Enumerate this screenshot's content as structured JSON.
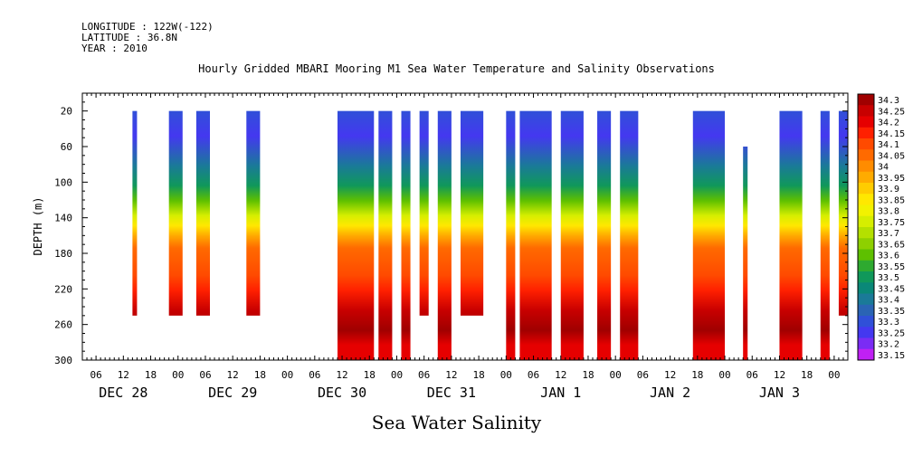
{
  "header": {
    "longitude": "LONGITUDE : 122W(-122)",
    "latitude": "LATITUDE : 36.8N",
    "year": "YEAR : 2010"
  },
  "chart_data": {
    "type": "heatmap",
    "title": "Hourly Gridded MBARI Mooring M1 Sea Water Temperature and Salinity Observations",
    "xlabel": "",
    "ylabel": "DEPTH (m)",
    "footer": "Sea Water Salinity",
    "y_ticks": [
      20,
      60,
      100,
      140,
      180,
      220,
      260,
      300
    ],
    "ylim": [
      0,
      300
    ],
    "x_hour_ticks": [
      "06",
      "12",
      "18",
      "00",
      "06",
      "12",
      "18",
      "00",
      "06",
      "12",
      "18",
      "00",
      "06",
      "12",
      "18",
      "00",
      "06",
      "12",
      "18",
      "00",
      "06",
      "12",
      "18",
      "00",
      "06",
      "12",
      "18",
      "00"
    ],
    "x_day_labels": [
      "DEC 28",
      "DEC 29",
      "DEC 30",
      "DEC 31",
      "JAN  1",
      "JAN  2",
      "JAN  3"
    ],
    "colorbar_levels": [
      34.3,
      34.25,
      34.2,
      34.15,
      34.1,
      34.05,
      34,
      33.95,
      33.9,
      33.85,
      33.8,
      33.75,
      33.7,
      33.65,
      33.6,
      33.55,
      33.5,
      33.45,
      33.4,
      33.35,
      33.3,
      33.25,
      33.2,
      33.15
    ],
    "colorbar_colors": [
      "#a00000",
      "#c80000",
      "#e60000",
      "#ff2000",
      "#ff4a00",
      "#ff6a00",
      "#ff8c00",
      "#ffab00",
      "#ffcc00",
      "#ffe800",
      "#f2f200",
      "#d6ee00",
      "#b4e000",
      "#8ed000",
      "#5ec000",
      "#2eaa30",
      "#10985a",
      "#0a8878",
      "#1a7a98",
      "#2a64b4",
      "#3050d8",
      "#4438f0",
      "#7a2cf4",
      "#c020f4"
    ],
    "columns": [
      {
        "start_hour": 14,
        "end_hour": 15,
        "top": 20,
        "bottom": 250
      },
      {
        "start_hour": 22,
        "end_hour": 25,
        "top": 20,
        "bottom": 250
      },
      {
        "start_hour": 28,
        "end_hour": 31,
        "top": 20,
        "bottom": 250
      },
      {
        "start_hour": 39,
        "end_hour": 42,
        "top": 20,
        "bottom": 250
      },
      {
        "start_hour": 59,
        "end_hour": 67,
        "top": 20,
        "bottom": 300
      },
      {
        "start_hour": 68,
        "end_hour": 71,
        "top": 20,
        "bottom": 300
      },
      {
        "start_hour": 73,
        "end_hour": 75,
        "top": 20,
        "bottom": 300
      },
      {
        "start_hour": 77,
        "end_hour": 79,
        "top": 20,
        "bottom": 250
      },
      {
        "start_hour": 81,
        "end_hour": 84,
        "top": 20,
        "bottom": 300
      },
      {
        "start_hour": 86,
        "end_hour": 91,
        "top": 20,
        "bottom": 250
      },
      {
        "start_hour": 96,
        "end_hour": 98,
        "top": 20,
        "bottom": 300
      },
      {
        "start_hour": 99,
        "end_hour": 106,
        "top": 20,
        "bottom": 300
      },
      {
        "start_hour": 108,
        "end_hour": 113,
        "top": 20,
        "bottom": 300
      },
      {
        "start_hour": 116,
        "end_hour": 119,
        "top": 20,
        "bottom": 300
      },
      {
        "start_hour": 121,
        "end_hour": 125,
        "top": 20,
        "bottom": 300
      },
      {
        "start_hour": 137,
        "end_hour": 144,
        "top": 20,
        "bottom": 300
      },
      {
        "start_hour": 148,
        "end_hour": 149,
        "top": 60,
        "bottom": 300
      },
      {
        "start_hour": 156,
        "end_hour": 161,
        "top": 20,
        "bottom": 300
      },
      {
        "start_hour": 165,
        "end_hour": 167,
        "top": 20,
        "bottom": 300
      },
      {
        "start_hour": 169,
        "end_hour": 171,
        "top": 20,
        "bottom": 250
      }
    ]
  }
}
